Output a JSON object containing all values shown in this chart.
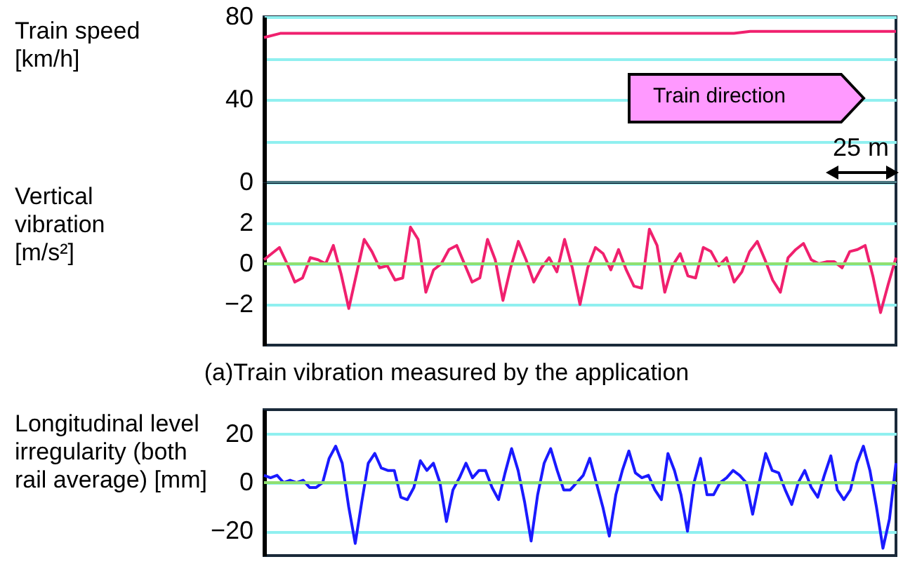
{
  "chart_data": [
    {
      "type": "line",
      "ylabel": "Train speed [km/h]",
      "categories": [
        null,
        null,
        null,
        null,
        null,
        null,
        null,
        null,
        null,
        null,
        null,
        null,
        null,
        null,
        null,
        null,
        null,
        null,
        null,
        null,
        null,
        null,
        null,
        null,
        null,
        null,
        null,
        null,
        null,
        null,
        null,
        null,
        null,
        null,
        null,
        null,
        null,
        null,
        null,
        null
      ],
      "series": [
        {
          "color": "#f0206e",
          "values": [
            70,
            72,
            72,
            72,
            72,
            72,
            72,
            72,
            72,
            72,
            72,
            72,
            72,
            72,
            72,
            72,
            72,
            72,
            72,
            72,
            72,
            72,
            72,
            72,
            72,
            72,
            72,
            72,
            72,
            72,
            73,
            73,
            73,
            73,
            73,
            73,
            73,
            73,
            73,
            73
          ]
        }
      ],
      "ylim": [
        0,
        80
      ],
      "yticks": [
        0,
        {
          "value": 20,
          "label": null
        },
        40,
        {
          "value": 60,
          "label": null
        },
        80
      ],
      "grid": "y",
      "annotations": [
        "Train direction",
        "25 m"
      ]
    },
    {
      "type": "line",
      "ylabel": "Vertical vibration [m/s²]",
      "title": "(a)Train vibration measured by the application",
      "categories": [
        null,
        null,
        null,
        null,
        null,
        null,
        null,
        null,
        null,
        null,
        null,
        null,
        null,
        null,
        null,
        null,
        null,
        null,
        null,
        null,
        null,
        null,
        null,
        null,
        null,
        null,
        null,
        null,
        null,
        null,
        null,
        null,
        null,
        null,
        null,
        null,
        null,
        null,
        null,
        null,
        null,
        null,
        null,
        null,
        null,
        null,
        null,
        null,
        null,
        null,
        null,
        null,
        null,
        null,
        null,
        null,
        null,
        null,
        null,
        null,
        null,
        null,
        null,
        null,
        null,
        null,
        null,
        null,
        null,
        null,
        null,
        null,
        null,
        null,
        null,
        null,
        null,
        null,
        null,
        null,
        null,
        null,
        null
      ],
      "series": [
        {
          "color": "#f0206e",
          "values": [
            0.2,
            0.5,
            0.8,
            0.0,
            -0.9,
            -0.7,
            0.3,
            0.2,
            0.0,
            0.9,
            -0.5,
            -2.2,
            -0.5,
            1.2,
            0.6,
            -0.2,
            -0.1,
            -0.8,
            -0.7,
            1.8,
            1.2,
            -1.4,
            -0.3,
            0.0,
            0.7,
            0.9,
            0.0,
            -0.9,
            -0.7,
            1.2,
            0.2,
            -1.8,
            -0.2,
            1.1,
            0.2,
            -0.9,
            -0.2,
            0.3,
            -0.4,
            1.2,
            -0.2,
            -2.0,
            -0.2,
            0.8,
            0.5,
            -0.3,
            0.7,
            -0.3,
            -1.1,
            -1.2,
            1.7,
            0.9,
            -1.4,
            -0.1,
            0.5,
            -0.6,
            -0.7,
            0.8,
            0.6,
            -0.1,
            0.3,
            -0.9,
            -0.4,
            0.6,
            1.1,
            0.2,
            -0.8,
            -1.4,
            0.3,
            0.7,
            1.0,
            0.2,
            0.0,
            0.1,
            0.1,
            -0.2,
            0.6,
            0.7,
            0.9,
            -0.6,
            -2.4,
            -1.0,
            0.3
          ]
        }
      ],
      "ylim": [
        -4,
        4
      ],
      "yticks": [
        -2,
        0,
        2
      ],
      "grid": "y",
      "ref_lines": [
        {
          "axis": "y",
          "value": 0,
          "color": "#90e070"
        }
      ]
    },
    {
      "type": "line",
      "ylabel": "Longitudinal level irregularity (both rail average) [mm]",
      "categories": [
        null,
        null,
        null,
        null,
        null,
        null,
        null,
        null,
        null,
        null,
        null,
        null,
        null,
        null,
        null,
        null,
        null,
        null,
        null,
        null,
        null,
        null,
        null,
        null,
        null,
        null,
        null,
        null,
        null,
        null,
        null,
        null,
        null,
        null,
        null,
        null,
        null,
        null,
        null,
        null,
        null,
        null,
        null,
        null,
        null,
        null,
        null,
        null,
        null,
        null,
        null,
        null,
        null,
        null,
        null,
        null,
        null,
        null,
        null,
        null,
        null,
        null,
        null,
        null,
        null,
        null,
        null,
        null,
        null,
        null,
        null,
        null,
        null,
        null,
        null,
        null,
        null,
        null,
        null,
        null,
        null,
        null,
        null,
        null,
        null,
        null,
        null,
        null,
        null,
        null,
        null,
        null,
        null,
        null,
        null,
        null,
        null,
        null
      ],
      "series": [
        {
          "color": "#1a1aff",
          "values": [
            3,
            2,
            3,
            0,
            1,
            0,
            1,
            -2,
            -2,
            0,
            10,
            15,
            8,
            -10,
            -25,
            -8,
            8,
            12,
            6,
            5,
            5,
            -6,
            -7,
            -2,
            9,
            5,
            8,
            0,
            -16,
            -3,
            2,
            8,
            2,
            5,
            5,
            -2,
            -7,
            4,
            14,
            5,
            -8,
            -24,
            -5,
            8,
            14,
            5,
            -3,
            -3,
            0,
            3,
            10,
            0,
            -10,
            -22,
            -5,
            5,
            13,
            4,
            2,
            3,
            -3,
            -7,
            12,
            5,
            -5,
            -20,
            0,
            10,
            -5,
            -5,
            0,
            2,
            5,
            3,
            0,
            -13,
            0,
            12,
            5,
            4,
            -3,
            -9,
            0,
            5,
            -2,
            -6,
            3,
            11,
            -3,
            -7,
            -3,
            8,
            15,
            5,
            -10,
            -27,
            -15,
            8
          ]
        }
      ],
      "ylim": [
        -30,
        30
      ],
      "yticks": [
        -20,
        0,
        20
      ],
      "grid": "y",
      "ref_lines": [
        {
          "axis": "y",
          "value": 0,
          "color": "#90e070"
        }
      ]
    }
  ]
}
